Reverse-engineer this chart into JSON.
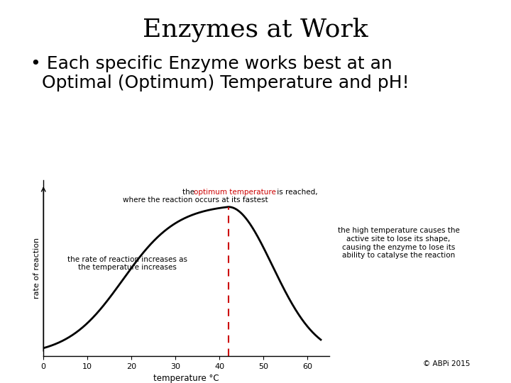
{
  "title": "Enzymes at Work",
  "bullet_line1": "• Each specific Enzyme works best at an",
  "bullet_line2": "  Optimal (Optimum) Temperature and pH!",
  "background_color": "#ffffff",
  "title_fontsize": 26,
  "bullet_fontsize": 18,
  "curve_color": "#000000",
  "dashed_line_color": "#cc0000",
  "optimum_temp": 42,
  "x_label": "temperature °C",
  "y_label": "rate of reaction",
  "x_ticks": [
    0,
    10,
    20,
    30,
    40,
    50,
    60
  ],
  "x_min": 0,
  "x_max": 65,
  "ann1_text": "the rate of reaction increases as\nthe temperature increases",
  "ann2_pre": "the ",
  "ann2_red": "optimum temperature",
  "ann2_post": " is reached,",
  "ann2_line2": "where the reaction occurs at its fastest",
  "ann3_text": "the high temperature causes the\nactive site to lose its shape,\ncausing the enzyme to lose its\nability to catalyse the reaction",
  "copyright_text": "© ABPi 2015",
  "red_color": "#cc0000",
  "ann_fontsize": 7.5
}
